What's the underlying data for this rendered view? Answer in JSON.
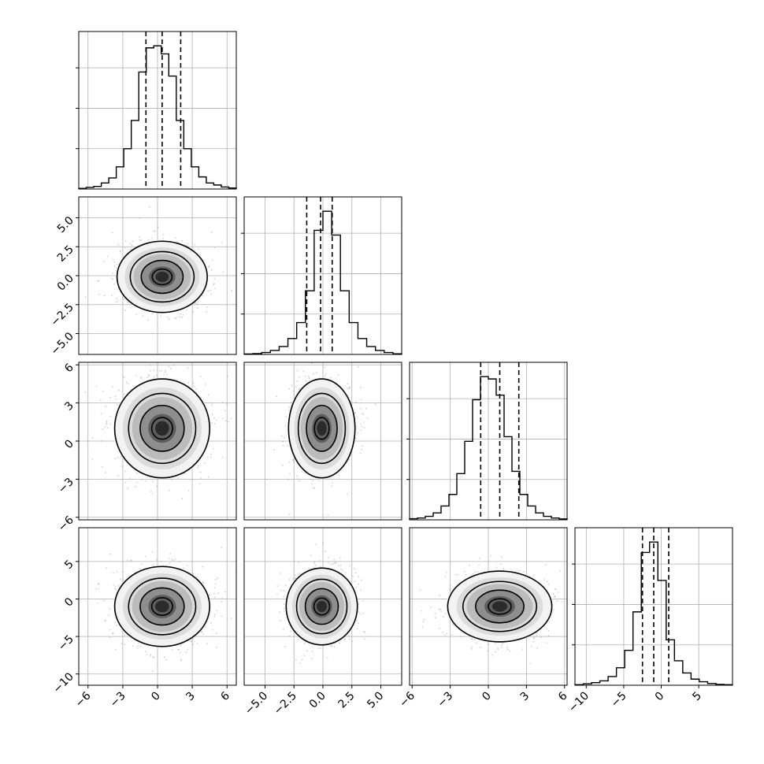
{
  "chart_data": {
    "type": "corner",
    "grid": true,
    "parameters": [
      {
        "range": [
          -6.8,
          6.8
        ],
        "ticks": [
          -6,
          -3,
          0,
          3,
          6
        ],
        "tick_labels": [
          "−6",
          "−3",
          "0",
          "3",
          "6"
        ],
        "quantiles": [
          -1.0,
          0.4,
          2.0
        ],
        "histogram": [
          0.3,
          0.8,
          1.3,
          3.0,
          5.5,
          11,
          20,
          34,
          58,
          70,
          71,
          67,
          56,
          34,
          20,
          11,
          6,
          3,
          2,
          1,
          0.5
        ]
      },
      {
        "range": [
          -6.8,
          6.8
        ],
        "ticks": [
          -5.0,
          -2.5,
          0.0,
          2.5,
          5.0
        ],
        "tick_labels": [
          "−5.0",
          "−2.5",
          "0.0",
          "2.5",
          "5.0"
        ],
        "quantiles": [
          -1.4,
          -0.2,
          0.8
        ],
        "histogram": [
          0.3,
          0.5,
          1.2,
          2.5,
          5,
          10,
          20,
          40,
          78,
          90,
          75,
          40,
          20,
          10,
          5,
          2.5,
          1.2,
          0.4
        ]
      },
      {
        "range": [
          -6.2,
          6.2
        ],
        "ticks": [
          -6,
          -3,
          0,
          3,
          6
        ],
        "tick_labels": [
          "−6",
          "−3",
          "0",
          "3",
          "6"
        ],
        "quantiles": [
          -0.6,
          0.9,
          2.4
        ],
        "histogram": [
          0.5,
          0.8,
          1.5,
          3,
          6,
          11,
          20,
          34,
          52,
          62,
          61,
          54,
          36,
          21,
          11,
          6,
          3,
          1.5,
          0.8,
          0.4
        ]
      },
      {
        "range": [
          -11.5,
          9.5
        ],
        "ticks": [
          -10,
          -5,
          0,
          5
        ],
        "tick_labels": [
          "−10",
          "−5",
          "0",
          "5"
        ],
        "quantiles": [
          -2.5,
          -1.0,
          1.0
        ],
        "histogram": [
          0.3,
          0.8,
          1.5,
          2.5,
          5,
          10,
          20,
          42,
          76,
          82,
          60,
          26,
          14,
          7,
          3.5,
          2,
          1,
          0.5,
          0.3
        ]
      }
    ],
    "pairs": [
      {
        "row": 1,
        "col": 0,
        "center": [
          0.4,
          -0.1
        ],
        "sd": [
          1.9,
          1.5
        ]
      },
      {
        "row": 2,
        "col": 0,
        "center": [
          0.4,
          1.0
        ],
        "sd": [
          2.0,
          1.9
        ]
      },
      {
        "row": 2,
        "col": 1,
        "center": [
          -0.1,
          1.0
        ],
        "sd": [
          1.4,
          1.9
        ]
      },
      {
        "row": 3,
        "col": 0,
        "center": [
          0.4,
          -1.0
        ],
        "sd": [
          2.0,
          2.6
        ]
      },
      {
        "row": 3,
        "col": 1,
        "center": [
          -0.1,
          -1.0
        ],
        "sd": [
          1.5,
          2.5
        ]
      },
      {
        "row": 3,
        "col": 2,
        "center": [
          0.9,
          -1.0
        ],
        "sd": [
          2.0,
          2.3
        ]
      }
    ]
  }
}
